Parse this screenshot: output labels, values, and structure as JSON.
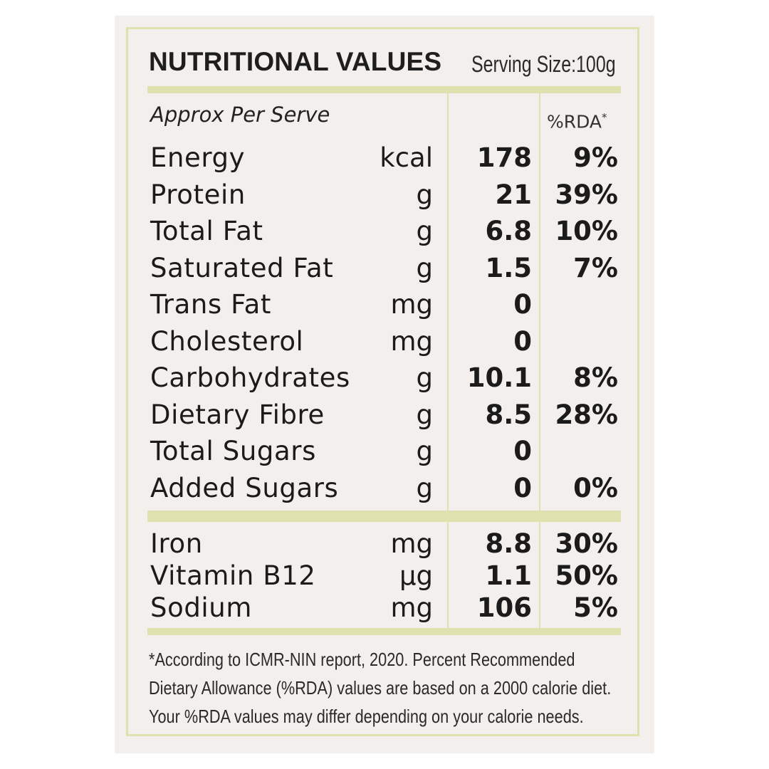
{
  "panel": {
    "title": "NUTRITIONAL VALUES",
    "serving_size": "Serving Size:100g",
    "approx_label": "Approx Per Serve",
    "rda_header": "%RDA",
    "rda_marker": "*"
  },
  "colors": {
    "background": "#f2efec",
    "accent_bar": "#dfe2ae",
    "text": "#1b1b1b"
  },
  "rows": [
    {
      "name": "Energy",
      "unit": "kcal",
      "value": "178",
      "rda": "9%"
    },
    {
      "name": "Protein",
      "unit": "g",
      "value": "21",
      "rda": "39%"
    },
    {
      "name": "Total Fat",
      "unit": "g",
      "value": "6.8",
      "rda": "10%"
    },
    {
      "name": "Saturated Fat",
      "unit": "g",
      "value": "1.5",
      "rda": "7%"
    },
    {
      "name": "Trans Fat",
      "unit": "mg",
      "value": "0",
      "rda": ""
    },
    {
      "name": "Cholesterol",
      "unit": "mg",
      "value": "0",
      "rda": ""
    },
    {
      "name": "Carbohydrates",
      "unit": "g",
      "value": "10.1",
      "rda": "8%"
    },
    {
      "name": "Dietary Fibre",
      "unit": "g",
      "value": "8.5",
      "rda": "28%"
    },
    {
      "name": "Total Sugars",
      "unit": "g",
      "value": "0",
      "rda": ""
    },
    {
      "name": "Added Sugars",
      "unit": "g",
      "value": "0",
      "rda": "0%"
    }
  ],
  "micro_rows": [
    {
      "name": "Iron",
      "unit": "mg",
      "value": "8.8",
      "rda": "30%"
    },
    {
      "name": "Vitamin B12",
      "unit": "µg",
      "value": "1.1",
      "rda": "50%"
    },
    {
      "name": "Sodium",
      "unit": "mg",
      "value": "106",
      "rda": "5%"
    }
  ],
  "footnote": {
    "line1": "*According to ICMR-NIN report, 2020. Percent Recommended",
    "line2": "Dietary Allowance (%RDA) values are based on a 2000 calorie diet.",
    "line3": "Your %RDA values may differ depending on your calorie needs."
  }
}
